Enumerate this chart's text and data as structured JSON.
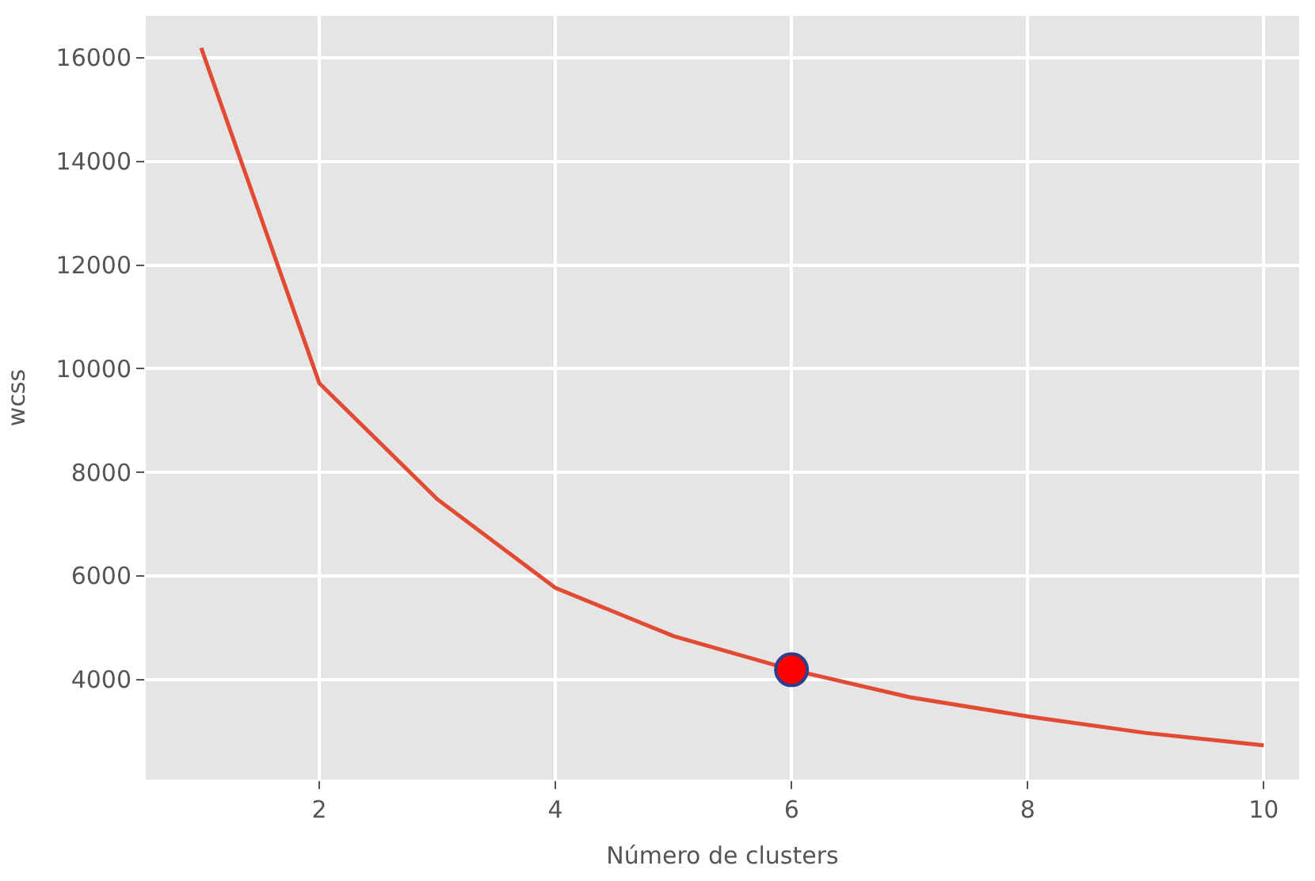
{
  "chart_data": {
    "type": "line",
    "xlabel": "Número de clusters",
    "ylabel": "wcss",
    "x": [
      1,
      2,
      3,
      4,
      5,
      6,
      7,
      8,
      9,
      10
    ],
    "series": [
      {
        "color": "#e24a33",
        "values": [
          16190,
          9720,
          7480,
          5770,
          4840,
          4190,
          3660,
          3290,
          2970,
          2730
        ],
        "marker": "none"
      },
      {
        "type": "scatter",
        "color": "#ff0000",
        "x": [
          6
        ],
        "values": [
          4190
        ],
        "marker": "circle"
      }
    ],
    "xlim": [
      0.53,
      10.3
    ],
    "xticks": [
      2,
      4,
      6,
      8,
      10
    ],
    "ylim": [
      2070,
      16810
    ],
    "yticks": [
      4000,
      6000,
      8000,
      10000,
      12000,
      14000,
      16000
    ],
    "grid": true,
    "legend": false
  }
}
